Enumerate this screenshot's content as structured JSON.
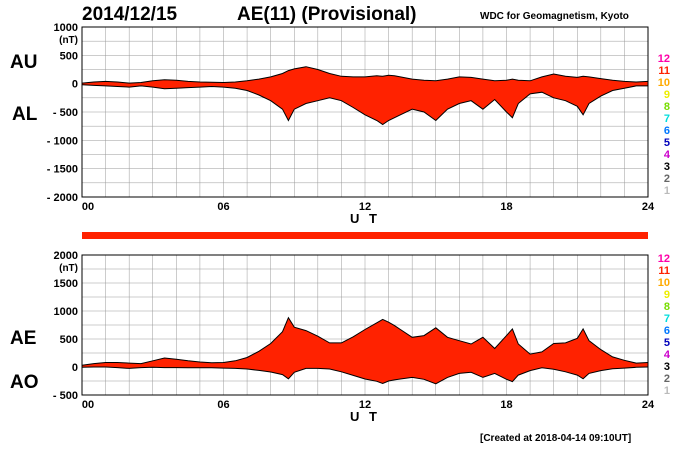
{
  "header": {
    "date": "2014/12/15",
    "title": "AE(11) (Provisional)",
    "organization": "WDC for Geomagnetism, Kyoto"
  },
  "footer": {
    "created": "[Created at 2018-04-14 09:10UT]"
  },
  "colors": {
    "fill": "#ff2200",
    "line": "#000000",
    "grid": "#999999",
    "axis": "#000000"
  },
  "legend": {
    "items": [
      {
        "label": "12",
        "color": "#ff00aa"
      },
      {
        "label": "11",
        "color": "#ff2200"
      },
      {
        "label": "10",
        "color": "#ffaa00"
      },
      {
        "label": "9",
        "color": "#eeee00"
      },
      {
        "label": "8",
        "color": "#77dd00"
      },
      {
        "label": "7",
        "color": "#00dddd"
      },
      {
        "label": "6",
        "color": "#0077ff"
      },
      {
        "label": "5",
        "color": "#0000bb"
      },
      {
        "label": "4",
        "color": "#cc00cc"
      },
      {
        "label": "3",
        "color": "#000000"
      },
      {
        "label": "2",
        "color": "#666666"
      },
      {
        "label": "1",
        "color": "#bbbbbb"
      }
    ]
  },
  "chart_data": [
    {
      "type": "area",
      "upper_series": "AU",
      "lower_series": "AL",
      "unit": "(nT)",
      "xlabel": "U T",
      "xlim": [
        0,
        24
      ],
      "xticks": [
        0,
        6,
        12,
        18,
        24
      ],
      "xtick_labels": [
        "00",
        "06",
        "12",
        "18",
        "24"
      ],
      "ylim": [
        -2000,
        1000
      ],
      "yticks": [
        1000,
        500,
        0,
        -500,
        -1000,
        -1500,
        -2000
      ],
      "ytick_labels": [
        "1000",
        "500",
        "0",
        "- 500",
        "- 1000",
        "- 1500",
        "- 2000"
      ],
      "grid": true,
      "x": [
        0,
        0.5,
        1,
        1.5,
        2,
        2.5,
        3,
        3.5,
        4,
        4.5,
        5,
        5.5,
        6,
        6.5,
        7,
        7.5,
        8,
        8.5,
        8.75,
        9,
        9.5,
        10,
        10.5,
        11,
        11.5,
        12,
        12.5,
        12.75,
        13,
        13.25,
        13.5,
        14,
        14.5,
        15,
        15.5,
        16,
        16.5,
        17,
        17.5,
        18,
        18.25,
        18.5,
        19,
        19.5,
        20,
        20.5,
        21,
        21.25,
        21.5,
        22,
        22.5,
        23,
        23.5,
        24
      ],
      "series": [
        {
          "name": "AU",
          "values": [
            10,
            30,
            40,
            30,
            10,
            20,
            50,
            70,
            60,
            40,
            30,
            25,
            20,
            30,
            50,
            80,
            120,
            180,
            230,
            260,
            300,
            250,
            180,
            130,
            120,
            120,
            140,
            130,
            150,
            140,
            120,
            80,
            60,
            50,
            80,
            120,
            110,
            80,
            50,
            60,
            80,
            60,
            50,
            120,
            170,
            130,
            110,
            130,
            120,
            90,
            60,
            40,
            30,
            40
          ]
        },
        {
          "name": "AL",
          "values": [
            -20,
            -30,
            -40,
            -50,
            -60,
            -40,
            -60,
            -90,
            -80,
            -70,
            -60,
            -50,
            -60,
            -80,
            -120,
            -200,
            -300,
            -450,
            -650,
            -450,
            -350,
            -300,
            -250,
            -300,
            -420,
            -550,
            -650,
            -720,
            -650,
            -600,
            -550,
            -450,
            -500,
            -650,
            -450,
            -350,
            -300,
            -450,
            -280,
            -500,
            -600,
            -350,
            -180,
            -150,
            -250,
            -300,
            -400,
            -550,
            -350,
            -220,
            -120,
            -80,
            -40,
            -40
          ]
        }
      ]
    },
    {
      "type": "area",
      "upper_series": "AE",
      "lower_series": "AO",
      "unit": "(nT)",
      "xlabel": "U T",
      "xlim": [
        0,
        24
      ],
      "xticks": [
        0,
        6,
        12,
        18,
        24
      ],
      "xtick_labels": [
        "00",
        "06",
        "12",
        "18",
        "24"
      ],
      "ylim": [
        -500,
        2000
      ],
      "yticks": [
        2000,
        1500,
        1000,
        500,
        0,
        -500
      ],
      "ytick_labels": [
        "2000",
        "1500",
        "1000",
        "500",
        "0",
        "- 500"
      ],
      "grid": true,
      "x": [
        0,
        0.5,
        1,
        1.5,
        2,
        2.5,
        3,
        3.5,
        4,
        4.5,
        5,
        5.5,
        6,
        6.5,
        7,
        7.5,
        8,
        8.5,
        8.75,
        9,
        9.5,
        10,
        10.5,
        11,
        11.5,
        12,
        12.5,
        12.75,
        13,
        13.25,
        13.5,
        14,
        14.5,
        15,
        15.5,
        16,
        16.5,
        17,
        17.5,
        18,
        18.25,
        18.5,
        19,
        19.5,
        20,
        20.5,
        21,
        21.25,
        21.5,
        22,
        22.5,
        23,
        23.5,
        24
      ],
      "series": [
        {
          "name": "AE",
          "values": [
            30,
            60,
            80,
            80,
            70,
            60,
            110,
            160,
            140,
            110,
            90,
            75,
            80,
            110,
            170,
            280,
            420,
            630,
            880,
            710,
            650,
            550,
            430,
            430,
            540,
            670,
            790,
            850,
            800,
            740,
            670,
            530,
            560,
            700,
            530,
            470,
            410,
            530,
            330,
            560,
            680,
            410,
            230,
            270,
            420,
            430,
            510,
            680,
            470,
            310,
            180,
            120,
            70,
            80
          ]
        },
        {
          "name": "AO",
          "values": [
            -5,
            0,
            0,
            -10,
            -25,
            -10,
            -5,
            -10,
            -10,
            -15,
            -15,
            -12,
            -20,
            -25,
            -35,
            -60,
            -90,
            -135,
            -210,
            -95,
            -25,
            -25,
            -35,
            -85,
            -150,
            -215,
            -255,
            -295,
            -250,
            -230,
            -215,
            -185,
            -220,
            -300,
            -185,
            -115,
            -95,
            -185,
            -115,
            -220,
            -260,
            -145,
            -65,
            -15,
            -40,
            -85,
            -145,
            -210,
            -115,
            -65,
            -30,
            -20,
            -5,
            0
          ]
        }
      ]
    }
  ]
}
